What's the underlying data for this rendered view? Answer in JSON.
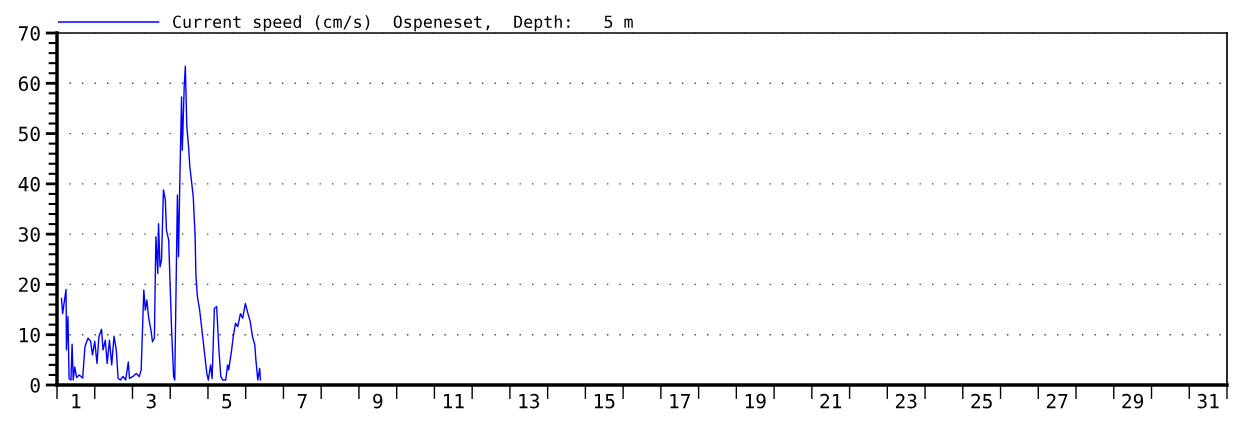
{
  "chart_data": {
    "type": "line",
    "series": [
      {
        "name": "Current speed (cm/s)  Ospeneset,  Depth:   5 m",
        "color": "#0000ff",
        "x": [
          0.12,
          0.15,
          0.18,
          0.24,
          0.25,
          0.29,
          0.32,
          0.37,
          0.4,
          0.43,
          0.47,
          0.52,
          0.59,
          0.68,
          0.74,
          0.82,
          0.89,
          0.94,
          1.0,
          1.06,
          1.11,
          1.18,
          1.22,
          1.28,
          1.33,
          1.39,
          1.45,
          1.51,
          1.57,
          1.62,
          1.68,
          1.75,
          1.82,
          1.89,
          1.92,
          2.01,
          2.1,
          2.18,
          2.23,
          2.3,
          2.34,
          2.38,
          2.43,
          2.49,
          2.53,
          2.58,
          2.62,
          2.67,
          2.69,
          2.73,
          2.77,
          2.82,
          2.87,
          2.9,
          2.96,
          2.99,
          3.04,
          3.09,
          3.12,
          3.19,
          3.22,
          3.25,
          3.3,
          3.32,
          3.37,
          3.4,
          3.44,
          3.48,
          3.52,
          3.56,
          3.61,
          3.66,
          3.68,
          3.72,
          3.78,
          3.85,
          3.91,
          3.97,
          4.01,
          4.07,
          4.11,
          4.17,
          4.23,
          4.29,
          4.34,
          4.39,
          4.47,
          4.52,
          4.55,
          4.62,
          4.67,
          4.73,
          4.79,
          4.86,
          4.92,
          4.99,
          5.06,
          5.12,
          5.18,
          5.24,
          5.27,
          5.32,
          5.37,
          5.39
        ],
        "values": [
          17.2,
          14.2,
          15.9,
          19.0,
          7.0,
          13.6,
          1.3,
          1.0,
          8.1,
          1.0,
          3.6,
          1.5,
          2.0,
          1.4,
          7.6,
          9.3,
          8.7,
          6.0,
          8.7,
          4.3,
          9.6,
          11.1,
          7.0,
          8.9,
          4.3,
          8.9,
          4.0,
          9.7,
          7.0,
          1.3,
          1.0,
          1.7,
          1.0,
          4.6,
          1.3,
          1.7,
          2.3,
          1.7,
          3.0,
          18.9,
          14.9,
          16.9,
          13.3,
          10.9,
          8.6,
          9.3,
          29.5,
          22.2,
          32.1,
          23.5,
          24.9,
          38.8,
          36.8,
          30.8,
          28.8,
          21.5,
          10.3,
          1.7,
          1.0,
          37.8,
          25.5,
          38.8,
          57.3,
          46.7,
          59.3,
          63.4,
          51.4,
          48.0,
          43.4,
          40.8,
          37.4,
          29.5,
          21.9,
          17.6,
          14.9,
          10.3,
          6.3,
          2.3,
          1.0,
          4.0,
          1.3,
          15.2,
          15.6,
          7.0,
          1.7,
          1.0,
          1.0,
          4.0,
          3.0,
          6.6,
          9.6,
          12.3,
          11.6,
          14.2,
          13.3,
          16.2,
          14.2,
          12.6,
          9.6,
          8.0,
          5.0,
          1.0,
          3.3,
          1.0
        ]
      }
    ],
    "xlim": [
      0,
      31
    ],
    "xticks": [
      {
        "value": 0,
        "label": null
      },
      {
        "value": 1,
        "label": null
      },
      {
        "value": 2,
        "label": null
      },
      {
        "value": 3,
        "label": null
      },
      {
        "value": 4,
        "label": null
      },
      {
        "value": 5,
        "label": null
      },
      {
        "value": 6,
        "label": null
      },
      {
        "value": 7,
        "label": null
      },
      {
        "value": 8,
        "label": null
      },
      {
        "value": 9,
        "label": null
      },
      {
        "value": 10,
        "label": null
      },
      {
        "value": 11,
        "label": null
      },
      {
        "value": 12,
        "label": null
      },
      {
        "value": 13,
        "label": null
      },
      {
        "value": 14,
        "label": null
      },
      {
        "value": 15,
        "label": null
      },
      {
        "value": 16,
        "label": null
      },
      {
        "value": 17,
        "label": null
      },
      {
        "value": 18,
        "label": null
      },
      {
        "value": 19,
        "label": null
      },
      {
        "value": 20,
        "label": null
      },
      {
        "value": 21,
        "label": null
      },
      {
        "value": 22,
        "label": null
      },
      {
        "value": 23,
        "label": null
      },
      {
        "value": 24,
        "label": null
      },
      {
        "value": 25,
        "label": null
      },
      {
        "value": 26,
        "label": null
      },
      {
        "value": 27,
        "label": null
      },
      {
        "value": 28,
        "label": null
      },
      {
        "value": 29,
        "label": null
      },
      {
        "value": 30,
        "label": null
      },
      {
        "value": 31,
        "label": null
      },
      {
        "value": 0.5,
        "label": "1"
      },
      {
        "value": 2.5,
        "label": "3"
      },
      {
        "value": 4.5,
        "label": "5"
      },
      {
        "value": 6.5,
        "label": "7"
      },
      {
        "value": 8.5,
        "label": "9"
      },
      {
        "value": 10.5,
        "label": "11"
      },
      {
        "value": 12.5,
        "label": "13"
      },
      {
        "value": 14.5,
        "label": "15"
      },
      {
        "value": 16.5,
        "label": "17"
      },
      {
        "value": 18.5,
        "label": "19"
      },
      {
        "value": 20.5,
        "label": "21"
      },
      {
        "value": 22.5,
        "label": "23"
      },
      {
        "value": 24.5,
        "label": "25"
      },
      {
        "value": 26.5,
        "label": "27"
      },
      {
        "value": 28.5,
        "label": "29"
      },
      {
        "value": 30.5,
        "label": "31"
      }
    ],
    "ylim": [
      0,
      70
    ],
    "yticks": [
      0,
      10,
      20,
      30,
      40,
      50,
      60,
      70,
      {
        "value": 2,
        "label": null
      },
      {
        "value": 4,
        "label": null
      },
      {
        "value": 6,
        "label": null
      },
      {
        "value": 8,
        "label": null
      },
      {
        "value": 12,
        "label": null
      },
      {
        "value": 14,
        "label": null
      },
      {
        "value": 16,
        "label": null
      },
      {
        "value": 18,
        "label": null
      },
      {
        "value": 22,
        "label": null
      },
      {
        "value": 24,
        "label": null
      },
      {
        "value": 26,
        "label": null
      },
      {
        "value": 28,
        "label": null
      },
      {
        "value": 32,
        "label": null
      },
      {
        "value": 34,
        "label": null
      },
      {
        "value": 36,
        "label": null
      },
      {
        "value": 38,
        "label": null
      },
      {
        "value": 42,
        "label": null
      },
      {
        "value": 44,
        "label": null
      },
      {
        "value": 46,
        "label": null
      },
      {
        "value": 48,
        "label": null
      },
      {
        "value": 52,
        "label": null
      },
      {
        "value": 54,
        "label": null
      },
      {
        "value": 56,
        "label": null
      },
      {
        "value": 58,
        "label": null
      },
      {
        "value": 62,
        "label": null
      },
      {
        "value": 64,
        "label": null
      },
      {
        "value": 66,
        "label": null
      },
      {
        "value": 68,
        "label": null
      }
    ],
    "grid": "y",
    "legend": "top left",
    "marker": "none",
    "line_style": "solid"
  }
}
